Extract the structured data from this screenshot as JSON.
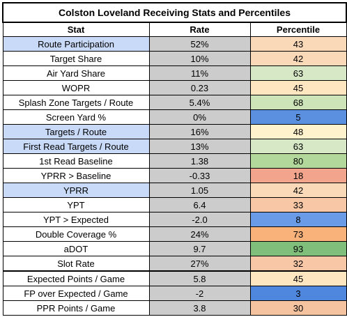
{
  "table": {
    "title": "Colston Loveland Receiving Stats and Percentiles",
    "headers": [
      "Stat",
      "Rate",
      "Percentile"
    ],
    "rows": [
      {
        "stat": "Route Participation",
        "rate": "52%",
        "percentile": "43",
        "stat_bg": "#c9daf8",
        "pct_bg": "#fad9b8"
      },
      {
        "stat": "Target Share",
        "rate": "10%",
        "percentile": "42",
        "stat_bg": "#ffffff",
        "pct_bg": "#fad9b8"
      },
      {
        "stat": "Air Yard Share",
        "rate": "11%",
        "percentile": "63",
        "stat_bg": "#ffffff",
        "pct_bg": "#d7e8c6"
      },
      {
        "stat": "WOPR",
        "rate": "0.23",
        "percentile": "45",
        "stat_bg": "#ffffff",
        "pct_bg": "#fde6c0"
      },
      {
        "stat": "Splash Zone Targets / Route",
        "rate": "5.4%",
        "percentile": "68",
        "stat_bg": "#ffffff",
        "pct_bg": "#cde4b8"
      },
      {
        "stat": "Screen Yard %",
        "rate": "0%",
        "percentile": "5",
        "stat_bg": "#ffffff",
        "pct_bg": "#5b8fe0"
      },
      {
        "stat": "Targets / Route",
        "rate": "16%",
        "percentile": "48",
        "stat_bg": "#c9daf8",
        "pct_bg": "#fff2cc"
      },
      {
        "stat": "First Read Targets / Route",
        "rate": "13%",
        "percentile": "63",
        "stat_bg": "#c9daf8",
        "pct_bg": "#d7e8c6"
      },
      {
        "stat": "1st Read Baseline",
        "rate": "1.38",
        "percentile": "80",
        "stat_bg": "#ffffff",
        "pct_bg": "#b3d89c"
      },
      {
        "stat": "YPRR > Baseline",
        "rate": "-0.33",
        "percentile": "18",
        "stat_bg": "#ffffff",
        "pct_bg": "#f2a48c"
      },
      {
        "stat": "YPRR",
        "rate": "1.05",
        "percentile": "42",
        "stat_bg": "#c9daf8",
        "pct_bg": "#fad9b8"
      },
      {
        "stat": "YPT",
        "rate": "6.4",
        "percentile": "33",
        "stat_bg": "#ffffff",
        "pct_bg": "#f7c7a6"
      },
      {
        "stat": "YPT > Expected",
        "rate": "-2.0",
        "percentile": "8",
        "stat_bg": "#ffffff",
        "pct_bg": "#6a9be6"
      },
      {
        "stat": "Double Coverage %",
        "rate": "24%",
        "percentile": "73",
        "stat_bg": "#ffffff",
        "pct_bg": "#f9b27a"
      },
      {
        "stat": "aDOT",
        "rate": "9.7",
        "percentile": "93",
        "stat_bg": "#ffffff",
        "pct_bg": "#7fbf7b"
      },
      {
        "stat": "Slot Rate",
        "rate": "27%",
        "percentile": "32",
        "stat_bg": "#ffffff",
        "pct_bg": "#f7c7a6"
      },
      {
        "stat": "Expected Points / Game",
        "rate": "5.8",
        "percentile": "45",
        "stat_bg": "#ffffff",
        "pct_bg": "#fde6c0"
      },
      {
        "stat": "FP over Expected / Game",
        "rate": "-2",
        "percentile": "3",
        "stat_bg": "#ffffff",
        "pct_bg": "#4f86de"
      },
      {
        "stat": "PPR Points / Game",
        "rate": "3.8",
        "percentile": "30",
        "stat_bg": "#ffffff",
        "pct_bg": "#f6c3a0"
      }
    ],
    "colors": {
      "rate_bg": "#cccccc",
      "header_bg": "#ffffff"
    }
  }
}
